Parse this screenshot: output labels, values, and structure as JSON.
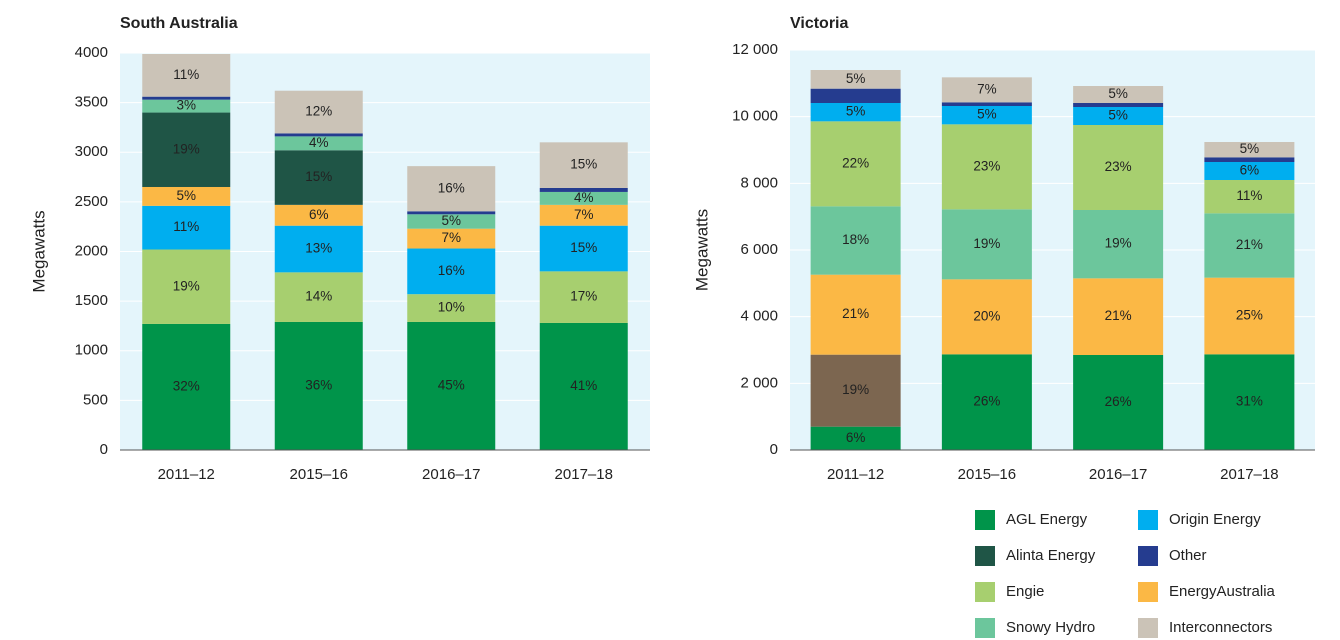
{
  "chart_data": [
    {
      "type": "stacked_bar",
      "title": "South Australia",
      "y_label": "Megawatts",
      "categories": [
        "2011–12",
        "2015–16",
        "2016–17",
        "2017–18"
      ],
      "ylim": [
        0,
        4000
      ],
      "yticks": [
        0,
        500,
        1000,
        1500,
        2000,
        2500,
        3000,
        3500,
        4000
      ],
      "grid": true,
      "series": [
        {
          "name": "AGL Energy",
          "color": "#00944a",
          "values": [
            1270,
            1290,
            1290,
            1280
          ],
          "value_labels": [
            "32%",
            "36%",
            "45%",
            "41%"
          ]
        },
        {
          "name": "Engie",
          "color": "#a7cf6f",
          "values": [
            750,
            500,
            280,
            520
          ],
          "value_labels": [
            "19%",
            "14%",
            "10%",
            "17%"
          ]
        },
        {
          "name": "Origin Energy",
          "color": "#00aeef",
          "values": [
            440,
            470,
            460,
            460
          ],
          "value_labels": [
            "11%",
            "13%",
            "16%",
            "15%"
          ]
        },
        {
          "name": "EnergyAustralia",
          "color": "#fbb845",
          "values": [
            190,
            210,
            200,
            210
          ],
          "value_labels": [
            "5%",
            "6%",
            "7%",
            "7%"
          ]
        },
        {
          "name": "Alinta Energy",
          "color": "#1f5546",
          "values": [
            750,
            550,
            0,
            0
          ],
          "value_labels": [
            "19%",
            "15%",
            null,
            null
          ]
        },
        {
          "name": "Snowy Hydro",
          "color": "#6cc69c",
          "values": [
            130,
            140,
            145,
            130
          ],
          "value_labels": [
            "3%",
            "4%",
            "5%",
            "4%"
          ]
        },
        {
          "name": "Other",
          "color": "#253c8f",
          "values": [
            30,
            30,
            30,
            40
          ],
          "value_labels": [
            null,
            null,
            null,
            null
          ]
        },
        {
          "name": "Interconnectors",
          "color": "#cbc3b7",
          "values": [
            430,
            430,
            455,
            460
          ],
          "value_labels": [
            "11%",
            "12%",
            "16%",
            "15%"
          ]
        }
      ]
    },
    {
      "type": "stacked_bar",
      "title": "Victoria",
      "y_label": "Megawatts",
      "categories": [
        "2011–12",
        "2015–16",
        "2016–17",
        "2017–18"
      ],
      "ylim": [
        0,
        12000
      ],
      "yticks": [
        0,
        {
          "value": 2000,
          "label": "2 000"
        },
        {
          "value": 4000,
          "label": "4 000"
        },
        {
          "value": 6000,
          "label": "6 000"
        },
        {
          "value": 8000,
          "label": "8 000"
        },
        {
          "value": 10000,
          "label": "10 000"
        },
        {
          "value": 12000,
          "label": "12 000"
        }
      ],
      "grid": true,
      "series": [
        {
          "name": "AGL Energy",
          "color": "#00944a",
          "values": [
            700,
            2870,
            2850,
            2870
          ],
          "value_labels": [
            "6%",
            "26%",
            "26%",
            "31%"
          ]
        },
        {
          "color": "#7c6650",
          "values": [
            2160,
            0,
            0,
            0
          ],
          "value_labels": [
            "19%",
            null,
            null,
            null
          ]
        },
        {
          "name": "EnergyAustralia",
          "color": "#fbb845",
          "values": [
            2400,
            2250,
            2300,
            2300
          ],
          "value_labels": [
            "21%",
            "20%",
            "21%",
            "25%"
          ]
        },
        {
          "name": "Snowy Hydro",
          "color": "#6cc69c",
          "values": [
            2050,
            2100,
            2050,
            1930
          ],
          "value_labels": [
            "18%",
            "19%",
            "19%",
            "21%"
          ]
        },
        {
          "name": "Engie",
          "color": "#a7cf6f",
          "values": [
            2550,
            2550,
            2550,
            1000
          ],
          "value_labels": [
            "22%",
            "23%",
            "23%",
            "11%"
          ]
        },
        {
          "name": "Origin Energy",
          "color": "#00aeef",
          "values": [
            550,
            550,
            540,
            540
          ],
          "value_labels": [
            "5%",
            "5%",
            "5%",
            "6%"
          ]
        },
        {
          "name": "Other",
          "color": "#253c8f",
          "values": [
            430,
            110,
            120,
            140
          ],
          "value_labels": [
            null,
            null,
            null,
            null
          ]
        },
        {
          "name": "Interconnectors",
          "color": "#cbc3b7",
          "values": [
            560,
            750,
            510,
            460
          ],
          "value_labels": [
            "5%",
            "7%",
            "5%",
            "5%"
          ]
        }
      ]
    }
  ]
}
